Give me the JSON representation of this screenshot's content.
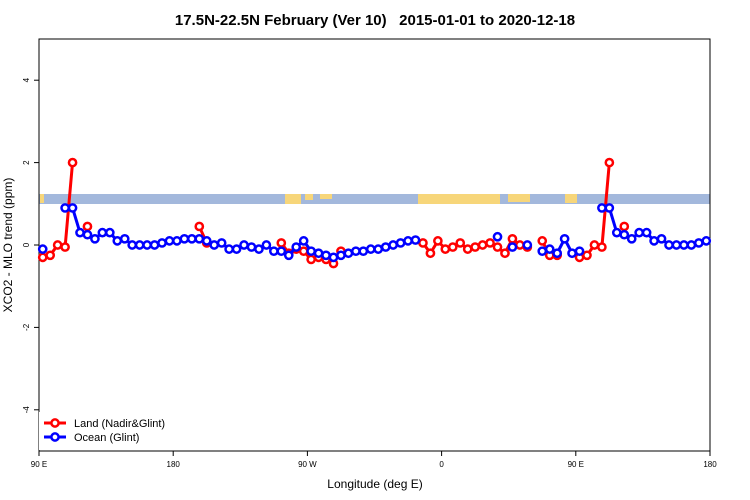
{
  "chart_data": {
    "type": "line",
    "title": "17.5N-22.5N February (Ver 10)   2015-01-01 to 2020-12-18",
    "x_label": "Longitude (deg E)",
    "y_label": "XCO2 - MLO trend (ppm)",
    "x": [
      92.5,
      97.5,
      102.5,
      107.5,
      112.5,
      117.5,
      122.5,
      127.5,
      132.5,
      137.5,
      142.5,
      147.5,
      152.5,
      157.5,
      162.5,
      167.5,
      172.5,
      177.5,
      182.5,
      187.5,
      192.5,
      197.5,
      202.5,
      207.5,
      212.5,
      217.5,
      222.5,
      227.5,
      232.5,
      237.5,
      242.5,
      247.5,
      252.5,
      257.5,
      262.5,
      267.5,
      272.5,
      277.5,
      282.5,
      287.5,
      292.5,
      297.5,
      302.5,
      307.5,
      312.5,
      317.5,
      322.5,
      327.5,
      332.5,
      337.5,
      342.5,
      347.5,
      352.5,
      357.5,
      362.5,
      367.5,
      372.5,
      377.5,
      382.5,
      387.5,
      392.5,
      397.5,
      402.5,
      407.5,
      412.5,
      417.5,
      422.5,
      427.5,
      432.5,
      437.5,
      442.5,
      447.5,
      452.5,
      457.5,
      462.5,
      467.5,
      472.5,
      477.5,
      482.5,
      487.5,
      492.5,
      497.5,
      502.5,
      507.5,
      512.5,
      517.5,
      522.5,
      527.5,
      532.5,
      537.5
    ],
    "series": [
      {
        "name": "Land (Nadir&Glint)",
        "color": "#ff0000",
        "values": [
          -0.3,
          -0.25,
          0,
          -0.05,
          2.0,
          null,
          0.45,
          null,
          null,
          null,
          null,
          null,
          null,
          null,
          null,
          null,
          null,
          null,
          null,
          null,
          null,
          0.45,
          0.05,
          null,
          null,
          null,
          null,
          null,
          null,
          null,
          null,
          null,
          0.05,
          -0.2,
          -0.1,
          -0.15,
          -0.35,
          -0.3,
          -0.35,
          -0.45,
          -0.15,
          null,
          null,
          null,
          null,
          null,
          null,
          null,
          null,
          null,
          null,
          0.05,
          -0.2,
          0.1,
          -0.1,
          -0.05,
          0.05,
          -0.1,
          -0.05,
          0,
          0.05,
          -0.05,
          -0.2,
          0.15,
          0,
          -0.05,
          null,
          0.1,
          -0.25,
          -0.25,
          null,
          null,
          -0.3,
          -0.25,
          0,
          -0.05,
          2.0,
          null,
          0.45,
          null,
          null,
          null,
          null,
          null,
          null,
          null,
          null,
          null,
          null,
          null
        ]
      },
      {
        "name": "Ocean (Glint)",
        "color": "#0000ff",
        "values": [
          -0.1,
          null,
          null,
          0.9,
          0.9,
          0.3,
          0.25,
          0.15,
          0.3,
          0.3,
          0.1,
          0.15,
          0,
          0,
          0,
          0,
          0.05,
          0.1,
          0.1,
          0.15,
          0.15,
          0.15,
          0.1,
          0,
          0.05,
          -0.1,
          -0.1,
          0,
          -0.05,
          -0.1,
          0,
          -0.15,
          -0.15,
          -0.25,
          -0.05,
          0.1,
          -0.15,
          -0.2,
          -0.25,
          -0.3,
          -0.25,
          -0.2,
          -0.15,
          -0.15,
          -0.1,
          -0.1,
          -0.05,
          0,
          0.05,
          0.1,
          0.12,
          null,
          null,
          null,
          null,
          null,
          null,
          null,
          null,
          null,
          null,
          0.2,
          null,
          -0.05,
          null,
          0,
          null,
          -0.15,
          -0.1,
          -0.2,
          0.15,
          -0.2,
          -0.15,
          null,
          null,
          0.9,
          0.9,
          0.3,
          0.25,
          0.15,
          0.3,
          0.3,
          0.1,
          0.15,
          0,
          0,
          0,
          0,
          0.05,
          0.1
        ]
      }
    ],
    "xlim": [
      90,
      540
    ],
    "xticks": [
      {
        "value": 90,
        "label": "90 E"
      },
      180,
      {
        "value": 270,
        "label": "90 W"
      },
      {
        "value": 360,
        "label": "0"
      },
      {
        "value": 450,
        "label": "90 E"
      },
      {
        "value": 540,
        "label": "180"
      }
    ],
    "ylim": [
      -5,
      5
    ],
    "yticks": [
      -4,
      -2,
      0,
      2,
      4
    ],
    "legend": "bottom-left"
  }
}
